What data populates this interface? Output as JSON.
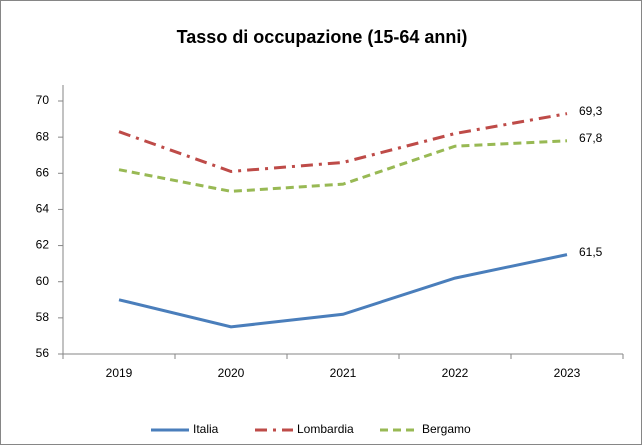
{
  "chart_data": {
    "type": "line",
    "title": "Tasso di occupazione (15-64 anni)",
    "categories": [
      "2019",
      "2020",
      "2021",
      "2022",
      "2023"
    ],
    "series": [
      {
        "name": "Italia",
        "color": "#4a7ebb",
        "dash": "solid",
        "values": [
          59.0,
          57.5,
          58.2,
          60.2,
          61.5
        ],
        "value_labels": [
          null,
          null,
          null,
          null,
          "61,5"
        ]
      },
      {
        "name": "Lombardia",
        "color": "#be4b48",
        "dash": "dashdot",
        "values": [
          68.3,
          66.1,
          66.6,
          68.2,
          69.3
        ],
        "value_labels": [
          null,
          null,
          null,
          null,
          "69,3"
        ]
      },
      {
        "name": "Bergamo",
        "color": "#98b954",
        "dash": "dash",
        "values": [
          66.2,
          65.0,
          65.4,
          67.5,
          67.8
        ],
        "value_labels": [
          null,
          null,
          null,
          null,
          "67,8"
        ]
      }
    ],
    "ylim": [
      56,
      70
    ],
    "yticks": [
      56,
      58,
      60,
      62,
      64,
      66,
      68,
      70
    ],
    "grid": false,
    "legend": "bottom"
  }
}
